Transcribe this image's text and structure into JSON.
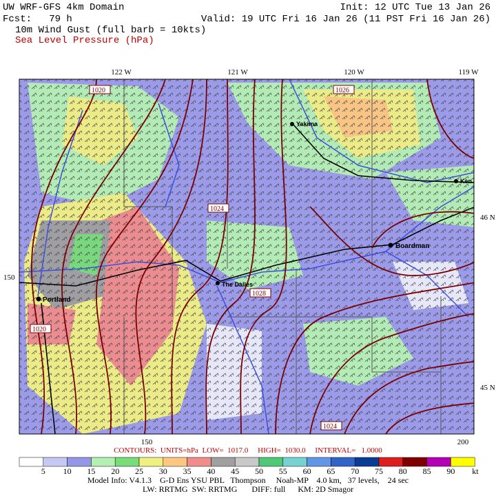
{
  "header": {
    "title": "UW WRF-GFS 4km Domain",
    "forecast": "Fcst:   79 h",
    "init": "Init: 12 UTC Tue 13 Jan 26",
    "valid": "Valid: 19 UTC Fri 16 Jan 26 (11 PST Fri 16 Jan 26)",
    "field1": "10m Wind Gust (full barb = 10kts)",
    "field2": "Sea Level Pressure (hPa)"
  },
  "map": {
    "lon_labels": [
      "122 W",
      "121 W",
      "120 W",
      "119 W"
    ],
    "lat_labels": [
      "46 N",
      "45 N"
    ],
    "grid_labels": {
      "left": "150",
      "bottom_left": "150",
      "bottom_right": "200"
    },
    "cities": [
      "Yakima",
      "Ken",
      "Boardman",
      "The Dalles",
      "Portland"
    ],
    "contour_labels": [
      "1020",
      "1026",
      "1024",
      "1028",
      "1020",
      "1024"
    ]
  },
  "footer": {
    "contours": "CONTOURS:  UNITS=hPa  LOW=  1017.0     HIGH=  1030.0     INTERVAL=   1.0000",
    "colorbar": {
      "labels": [
        5,
        10,
        15,
        20,
        25,
        30,
        35,
        40,
        45,
        50,
        55,
        60,
        65,
        70,
        75,
        80,
        85,
        90
      ],
      "unit": "kt",
      "colors": [
        "#ffffff",
        "#c8c8f5",
        "#9696e6",
        "#b4f0b4",
        "#78dc78",
        "#f0f082",
        "#ffc880",
        "#f08c8c",
        "#a0a0a0",
        "#c8c8c8",
        "#50c878",
        "#78d2d2",
        "#6496e6",
        "#3264c8",
        "#0a3c96",
        "#dc1e1e",
        "#800000",
        "#b400b4",
        "#ffff00"
      ]
    },
    "model_info": "Model Info: V4.1.3    G-D Ens YSU PBL   Thompson     Noah-MP    4.0 km,   37 levels,    24 sec",
    "physics": "LW: RRTMG  SW: RRTMG       DIFF: full      KM: 2D Smagor"
  }
}
